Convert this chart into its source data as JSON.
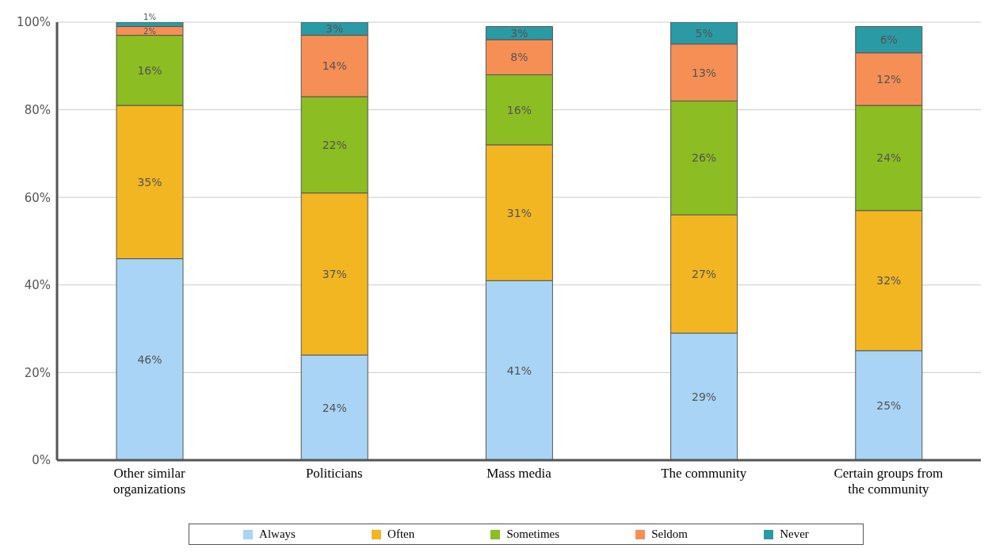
{
  "chart_data": {
    "type": "bar",
    "stacked": true,
    "categories": [
      "Other similar organizations",
      "Politicians",
      "Mass media",
      "The community",
      "Certain groups from the community"
    ],
    "series": [
      {
        "name": "Always",
        "color": "#a9d4f5",
        "values": [
          46,
          24,
          41,
          29,
          25
        ],
        "value_labels": [
          "46%",
          "24%",
          "41%",
          "29%",
          "25%"
        ]
      },
      {
        "name": "Often",
        "color": "#f2b622",
        "values": [
          35,
          37,
          31,
          27,
          32
        ],
        "value_labels": [
          "35%",
          "37%",
          "31%",
          "27%",
          "32%"
        ]
      },
      {
        "name": "Sometimes",
        "color": "#8cbd22",
        "values": [
          16,
          22,
          16,
          26,
          24
        ],
        "value_labels": [
          "16%",
          "22%",
          "16%",
          "26%",
          "24%"
        ]
      },
      {
        "name": "Seldom",
        "color": "#f68f55",
        "values": [
          2,
          14,
          8,
          13,
          12
        ],
        "value_labels": [
          "2%",
          "14%",
          "8%",
          "13%",
          "12%"
        ]
      },
      {
        "name": "Never",
        "color": "#2a9aa5",
        "values": [
          1,
          3,
          3,
          5,
          6
        ],
        "value_labels": [
          "1%",
          "3%",
          "3%",
          "5%",
          "6%"
        ]
      }
    ],
    "ylim": [
      0,
      100
    ],
    "yticks": [
      {
        "value": 0,
        "label": "0%"
      },
      {
        "value": 20,
        "label": "20%"
      },
      {
        "value": 40,
        "label": "40%"
      },
      {
        "value": 60,
        "label": "60%"
      },
      {
        "value": 80,
        "label": "80%"
      },
      {
        "value": 100,
        "label": "100%"
      }
    ],
    "grid": "y",
    "legend": "bottom"
  }
}
